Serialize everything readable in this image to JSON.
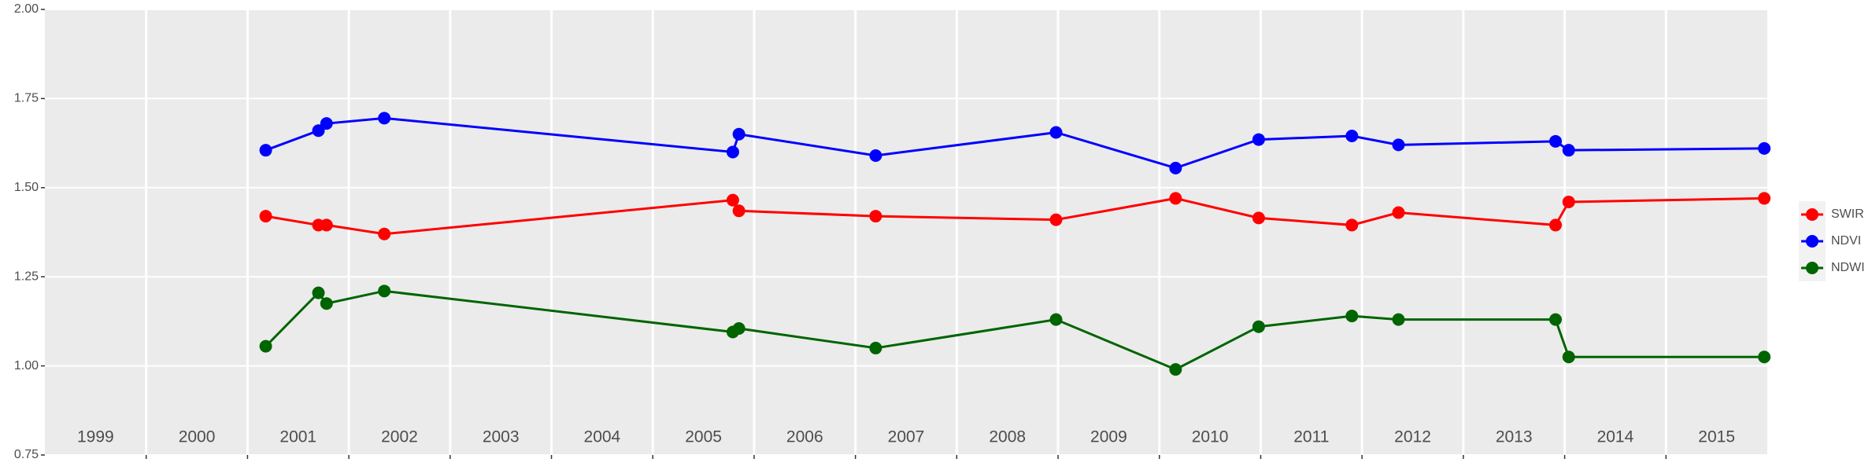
{
  "chart_data": {
    "type": "line",
    "xlim": [
      1999,
      2016
    ],
    "xticks": [
      2000,
      2001,
      2002,
      2003,
      2004,
      2005,
      2006,
      2007,
      2008,
      2009,
      2010,
      2011,
      2012,
      2013,
      2014,
      2015
    ],
    "ylim": [
      0.75,
      2.0
    ],
    "yticks": [
      {
        "value": 0.75,
        "label": "0.75"
      },
      {
        "value": 1.0,
        "label": "1.00"
      },
      {
        "value": 1.25,
        "label": "1.25"
      },
      {
        "value": 1.5,
        "label": "1.50"
      },
      {
        "value": 1.75,
        "label": "1.75"
      },
      {
        "value": 2.0,
        "label": "2.00"
      }
    ],
    "grid": true,
    "legend": "right",
    "annotations": [
      "1999",
      "2000",
      "2001",
      "2002",
      "2003",
      "2004",
      "2005",
      "2006",
      "2007",
      "2008",
      "2009",
      "2010",
      "2011",
      "2012",
      "2013",
      "2014",
      "2015"
    ],
    "x": [
      2001.18,
      2001.7,
      2001.78,
      2002.35,
      2005.79,
      2005.85,
      2007.2,
      2008.98,
      2010.16,
      2010.98,
      2011.9,
      2012.36,
      2013.91,
      2014.04,
      2015.97
    ],
    "series": [
      {
        "name": "SWIR",
        "color": "#ff0000",
        "values": [
          1.42,
          1.395,
          1.395,
          1.37,
          1.465,
          1.435,
          1.42,
          1.41,
          1.47,
          1.415,
          1.395,
          1.43,
          1.395,
          1.46,
          1.47
        ]
      },
      {
        "name": "NDVI",
        "color": "#0000ff",
        "values": [
          1.605,
          1.66,
          1.68,
          1.695,
          1.6,
          1.65,
          1.59,
          1.655,
          1.555,
          1.635,
          1.645,
          1.62,
          1.63,
          1.605,
          1.61
        ]
      },
      {
        "name": "NDWI",
        "color": "#006400",
        "values": [
          1.055,
          1.205,
          1.175,
          1.21,
          1.095,
          1.105,
          1.05,
          1.13,
          0.99,
          1.11,
          1.14,
          1.13,
          1.13,
          1.025,
          1.025
        ]
      }
    ]
  }
}
